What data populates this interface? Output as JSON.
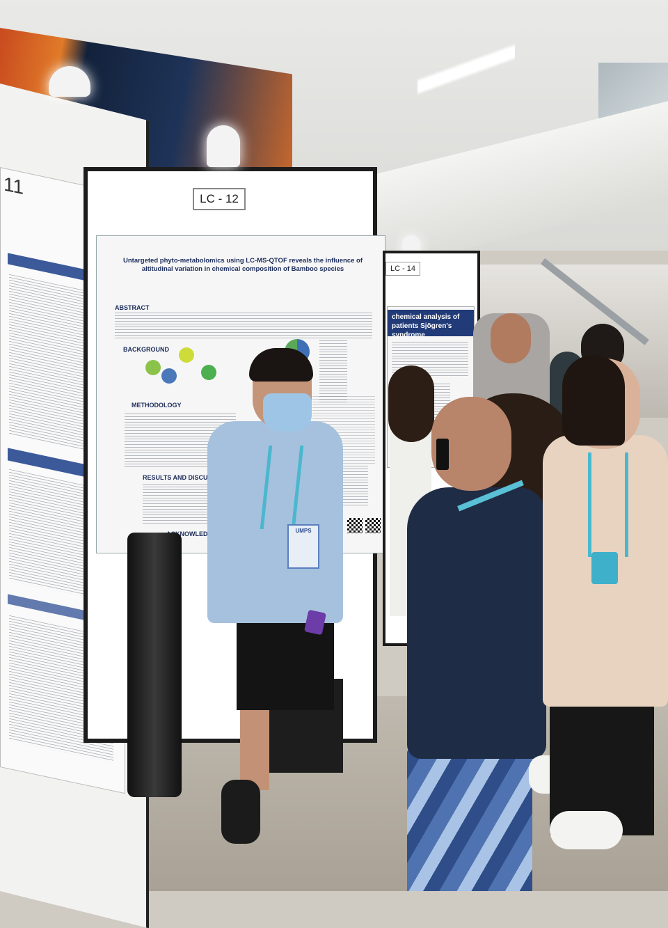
{
  "scene": {
    "center_board_label": "LC - 12",
    "far_board_label": "LC - 14",
    "left_board_number": "11"
  },
  "poster": {
    "title": "Untargeted phyto-metabolomics using LC-MS-QTOF reveals the influence of altitudinal variation in chemical composition of Bamboo species",
    "sections": {
      "abstract": "ABSTRACT",
      "background": "BACKGROUND",
      "methodology": "METHODOLOGY",
      "results": "RESULTS AND DISCUSSION",
      "acknowledgements": "ACKNOWLEDGEMENTS"
    }
  },
  "far_poster": {
    "title": "chemical analysis of patients Sjögren's syndrome"
  },
  "badges": {
    "man_badge_text": "UMPS"
  },
  "colors": {
    "poster_title": "#1b2c5a",
    "lanyard": "#4bb7cf",
    "banner_orange": "#e07a28",
    "banner_navy": "#1e3358"
  }
}
